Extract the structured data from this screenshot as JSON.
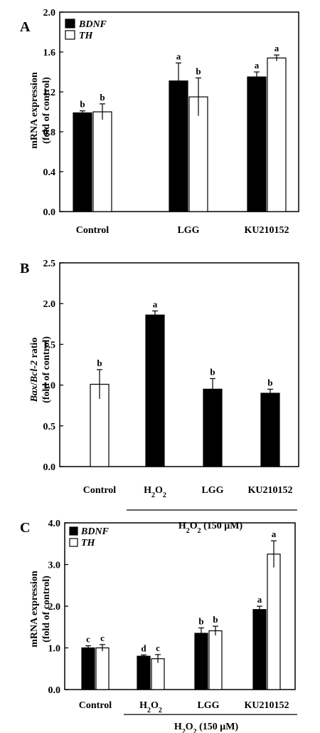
{
  "chart_data": [
    {
      "type": "bar",
      "panel": "A",
      "ylabel_line1": "mRNA expression",
      "ylabel_line2": "(fold of control)",
      "ylim": [
        0,
        2.0
      ],
      "ticks": [
        "0.0",
        "0.4",
        "0.8",
        "1.2",
        "1.6",
        "2.0"
      ],
      "tick_values": [
        0,
        0.4,
        0.8,
        1.2,
        1.6,
        2.0
      ],
      "categories": [
        "Control",
        "LGG",
        "KU210152"
      ],
      "legend": [
        "BDNF",
        "TH"
      ],
      "series": [
        {
          "name": "BDNF",
          "color": "#000000",
          "values": [
            0.99,
            1.31,
            1.35
          ],
          "errors": [
            0.02,
            0.18,
            0.05
          ],
          "letters": [
            "b",
            "a",
            "a"
          ]
        },
        {
          "name": "TH",
          "color": "#ffffff",
          "values": [
            1.0,
            1.15,
            1.54
          ],
          "errors": [
            0.08,
            0.19,
            0.03
          ],
          "letters": [
            "b",
            "b",
            "a"
          ]
        }
      ]
    },
    {
      "type": "bar",
      "panel": "B",
      "ylabel_italic_a": "Bax",
      "ylabel_mid": "/",
      "ylabel_italic_b": "Bcl-2",
      "ylabel_rest": " ratio",
      "ylabel_line2": "(fold of control)",
      "ylim": [
        0,
        2.5
      ],
      "ticks": [
        "0.0",
        "0.5",
        "1.0",
        "1.5",
        "2.0",
        "2.5"
      ],
      "tick_values": [
        0,
        0.5,
        1.0,
        1.5,
        2.0,
        2.5
      ],
      "categories": [
        "Control",
        "H2O2",
        "LGG",
        "KU210152"
      ],
      "colors": [
        "#ffffff",
        "#000000",
        "#000000",
        "#000000"
      ],
      "values": [
        1.01,
        1.86,
        0.95,
        0.9
      ],
      "errors": [
        0.18,
        0.05,
        0.13,
        0.05
      ],
      "letters": [
        "b",
        "a",
        "b",
        "b"
      ],
      "group_label": "H2O2 (150 μM)"
    },
    {
      "type": "bar",
      "panel": "C",
      "ylabel_line1": "mRNA expression",
      "ylabel_line2": "(fold of control)",
      "ylim": [
        0,
        4.0
      ],
      "ticks": [
        "0.0",
        "1.0",
        "2.0",
        "3.0",
        "4.0"
      ],
      "tick_values": [
        0,
        1.0,
        2.0,
        3.0,
        4.0
      ],
      "categories": [
        "Control",
        "H2O2",
        "LGG",
        "KU210152"
      ],
      "legend": [
        "BDNF",
        "TH"
      ],
      "series": [
        {
          "name": "BDNF",
          "color": "#000000",
          "values": [
            1.0,
            0.8,
            1.35,
            1.92
          ],
          "errors": [
            0.05,
            0.03,
            0.13,
            0.08
          ],
          "letters": [
            "c",
            "d",
            "b",
            "a"
          ]
        },
        {
          "name": "TH",
          "color": "#ffffff",
          "values": [
            1.0,
            0.74,
            1.41,
            3.25
          ],
          "errors": [
            0.08,
            0.1,
            0.11,
            0.32
          ],
          "letters": [
            "c",
            "c",
            "b",
            "a"
          ]
        }
      ],
      "group_label": "H2O2 (150 μM)"
    }
  ]
}
